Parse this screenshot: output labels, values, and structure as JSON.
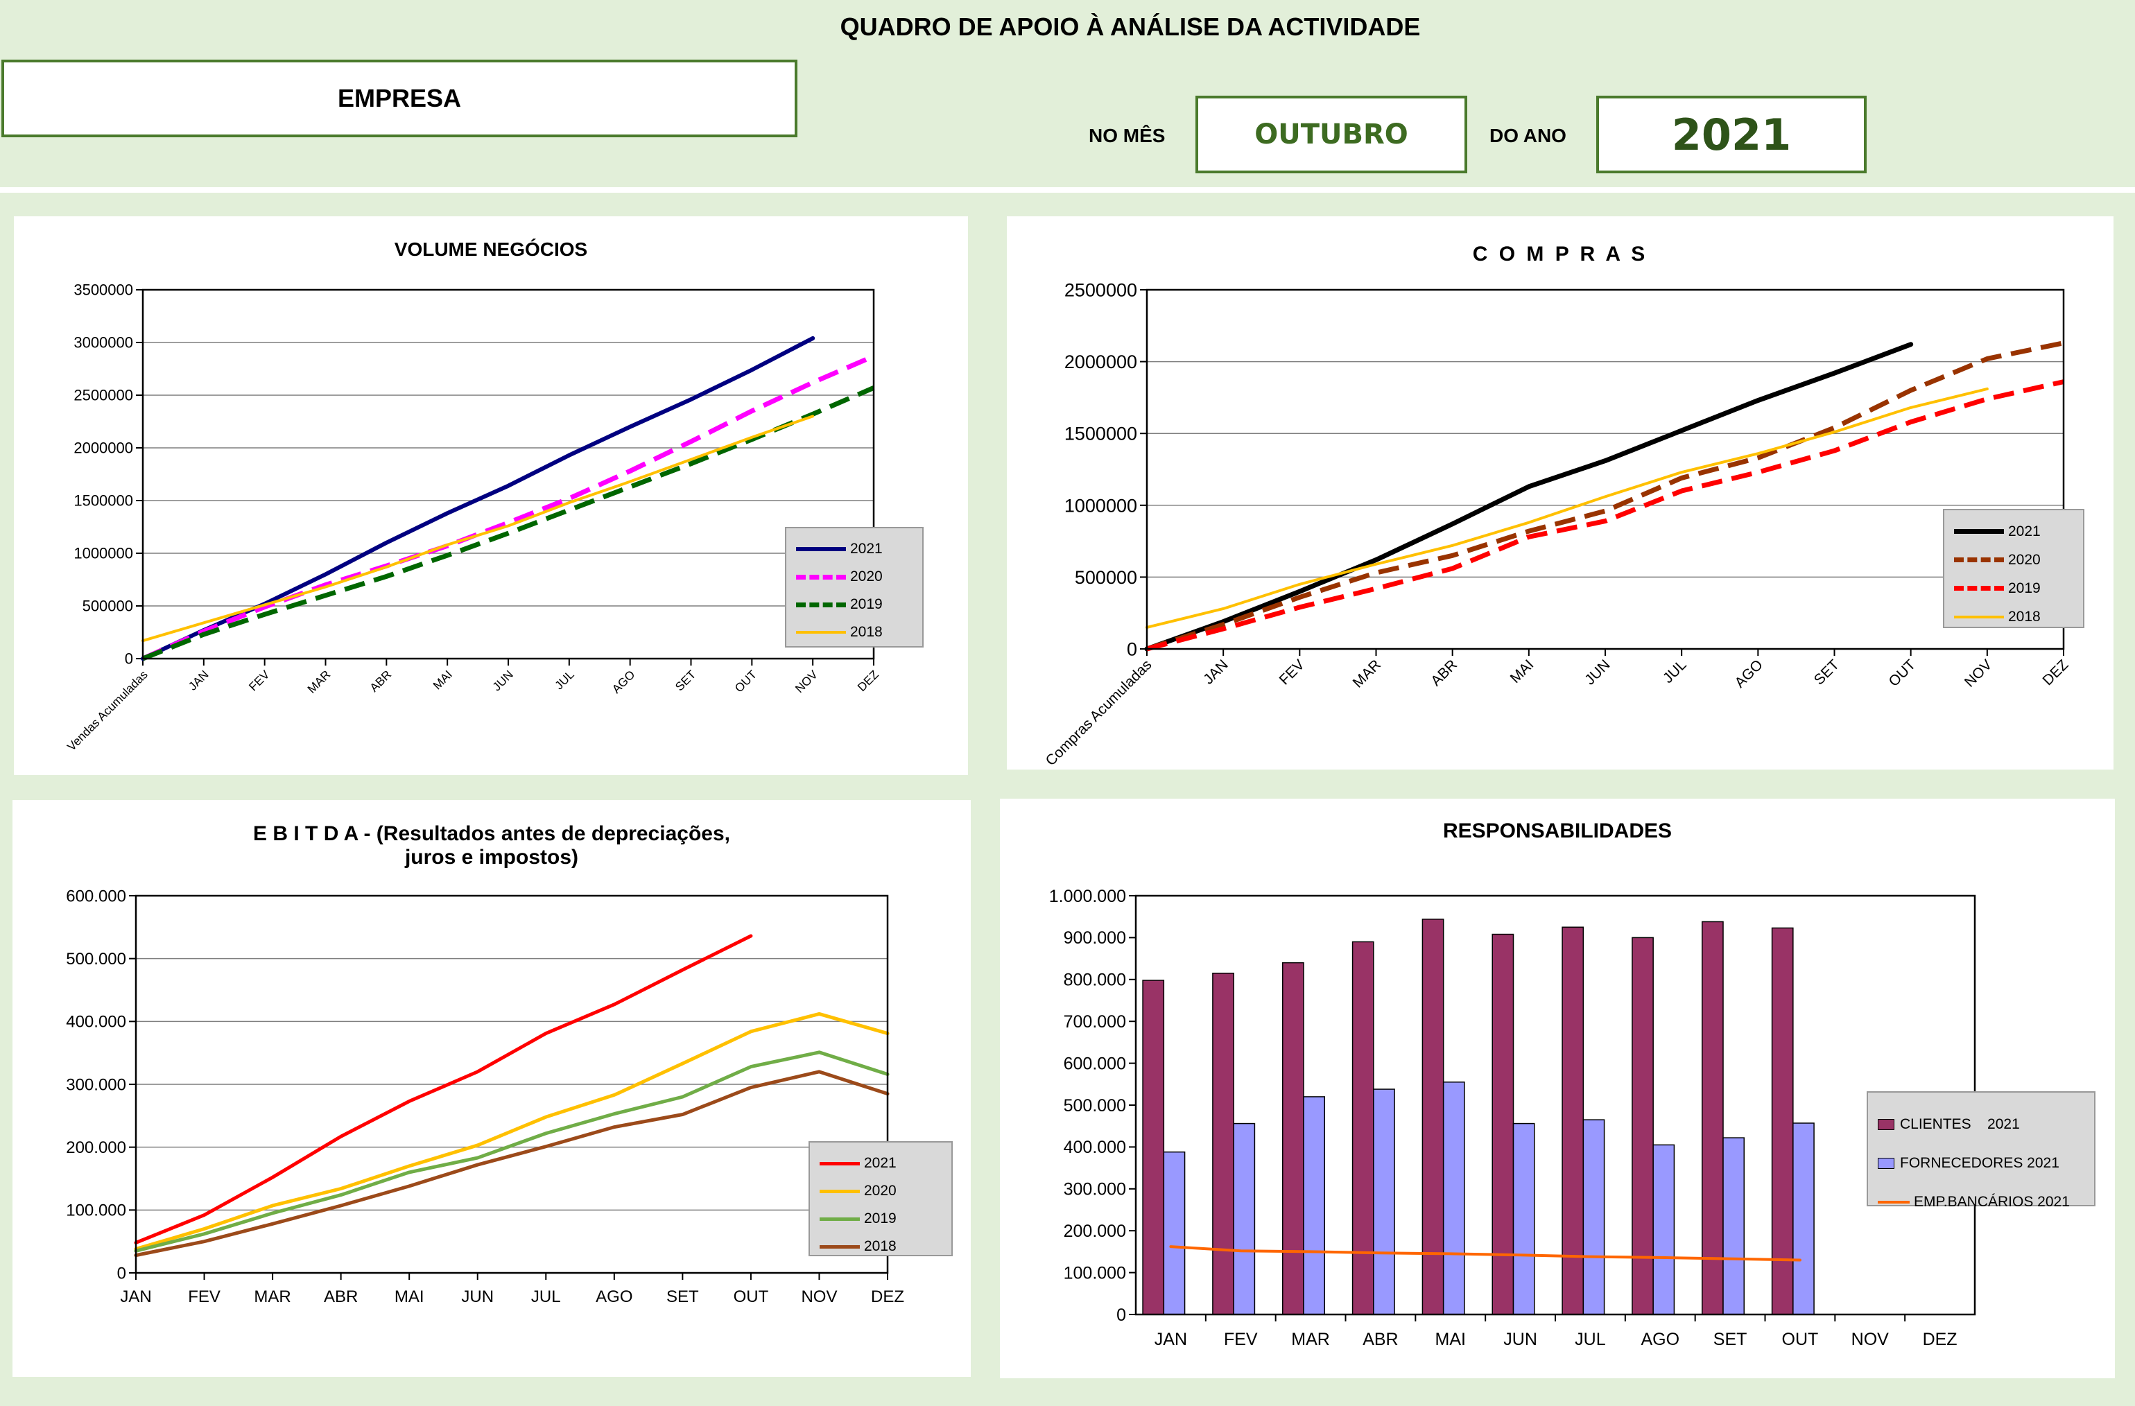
{
  "header": {
    "title": "QUADRO DE APOIO À ANÁLISE DA ACTIVIDADE",
    "company_label": "EMPRESA",
    "month_label": "NO MÊS",
    "month_value": "OUTUBRO",
    "year_label": "DO ANO",
    "year_value": "2021"
  },
  "colors": {
    "background": "#e2efd9",
    "box_border": "#4a7a2c",
    "month_text": "#3d6b21",
    "year_text": "#2e5319"
  },
  "chart_data": [
    {
      "id": "volume",
      "type": "line",
      "title": "VOLUME NEGÓCIOS",
      "categories": [
        "Vendas Acumuladas",
        "JAN",
        "FEV",
        "MAR",
        "ABR",
        "MAI",
        "JUN",
        "JUL",
        "AGO",
        "SET",
        "OUT",
        "NOV",
        "DEZ"
      ],
      "ylim": [
        0,
        3500000
      ],
      "yticks": [
        0,
        500000,
        1000000,
        1500000,
        2000000,
        2500000,
        3000000,
        3500000
      ],
      "ytick_labels": [
        "0",
        "500000",
        "1000000",
        "1500000",
        "2000000",
        "2500000",
        "3000000",
        "3500000"
      ],
      "grid": true,
      "legend": "right",
      "series": [
        {
          "name": "2021",
          "color": "#000080",
          "style": "solid",
          "width": 6,
          "values": [
            0,
            270000,
            520000,
            800000,
            1100000,
            1380000,
            1640000,
            1930000,
            2200000,
            2460000,
            2740000,
            3040000,
            null
          ]
        },
        {
          "name": "2020",
          "color": "#ff00ff",
          "style": "dash",
          "width": 7,
          "values": [
            0,
            260000,
            490000,
            700000,
            880000,
            1070000,
            1290000,
            1520000,
            1780000,
            2060000,
            2350000,
            2620000,
            2870000
          ]
        },
        {
          "name": "2019",
          "color": "#006600",
          "style": "dash",
          "width": 7,
          "values": [
            0,
            230000,
            420000,
            600000,
            780000,
            980000,
            1190000,
            1410000,
            1630000,
            1850000,
            2080000,
            2320000,
            2570000
          ]
        },
        {
          "name": "2018",
          "color": "#ffc000",
          "style": "solid",
          "width": 4,
          "values": [
            170000,
            340000,
            510000,
            680000,
            870000,
            1080000,
            1260000,
            1480000,
            1680000,
            1890000,
            2100000,
            2300000,
            null
          ]
        }
      ]
    },
    {
      "id": "compras",
      "type": "line",
      "title": "C O M P R A S",
      "categories": [
        "Compras Acumuladas",
        "JAN",
        "FEV",
        "MAR",
        "ABR",
        "MAI",
        "JUN",
        "JUL",
        "AGO",
        "SET",
        "OUT",
        "NOV",
        "DEZ"
      ],
      "ylim": [
        0,
        2500000
      ],
      "yticks": [
        0,
        500000,
        1000000,
        1500000,
        2000000,
        2500000
      ],
      "ytick_labels": [
        "0",
        "500000",
        "1000000",
        "1500000",
        "2000000",
        "2500000"
      ],
      "grid": true,
      "legend": "right",
      "series": [
        {
          "name": "2021",
          "color": "#000000",
          "style": "solid",
          "width": 7,
          "values": [
            0,
            190000,
            400000,
            620000,
            870000,
            1130000,
            1310000,
            1520000,
            1730000,
            1920000,
            2120000,
            null,
            null
          ]
        },
        {
          "name": "2020",
          "color": "#993300",
          "style": "dash",
          "width": 7,
          "values": [
            0,
            170000,
            360000,
            530000,
            650000,
            820000,
            960000,
            1190000,
            1330000,
            1540000,
            1800000,
            2020000,
            2130000
          ]
        },
        {
          "name": "2019",
          "color": "#ff0000",
          "style": "dash",
          "width": 7,
          "values": [
            0,
            140000,
            290000,
            420000,
            560000,
            780000,
            890000,
            1100000,
            1230000,
            1380000,
            1580000,
            1740000,
            1860000
          ]
        },
        {
          "name": "2018",
          "color": "#ffc000",
          "style": "solid",
          "width": 4,
          "values": [
            150000,
            280000,
            450000,
            590000,
            720000,
            880000,
            1060000,
            1230000,
            1360000,
            1510000,
            1680000,
            1810000,
            null
          ]
        }
      ]
    },
    {
      "id": "ebitda",
      "type": "line",
      "title": "E B I T D A  - (Resultados antes de depreciações,",
      "title2": "juros e impostos)",
      "categories": [
        "JAN",
        "FEV",
        "MAR",
        "ABR",
        "MAI",
        "JUN",
        "JUL",
        "AGO",
        "SET",
        "OUT",
        "NOV",
        "DEZ"
      ],
      "ylim": [
        0,
        600000
      ],
      "yticks": [
        0,
        100000,
        200000,
        300000,
        400000,
        500000,
        600000
      ],
      "ytick_labels": [
        "0",
        "100.000",
        "200.000",
        "300.000",
        "400.000",
        "500.000",
        "600.000"
      ],
      "grid": true,
      "legend": "right",
      "series": [
        {
          "name": "2021",
          "color": "#ff0000",
          "style": "solid",
          "width": 5,
          "values": [
            48000,
            92000,
            152000,
            217000,
            273000,
            320000,
            381000,
            427000,
            482000,
            536000,
            null,
            null
          ]
        },
        {
          "name": "2020",
          "color": "#ffc000",
          "style": "solid",
          "width": 5,
          "values": [
            38000,
            70000,
            107000,
            134000,
            170000,
            203000,
            248000,
            283000,
            333000,
            384000,
            412000,
            381000
          ]
        },
        {
          "name": "2019",
          "color": "#70ad47",
          "style": "solid",
          "width": 5,
          "values": [
            35000,
            62000,
            95000,
            124000,
            160000,
            183000,
            222000,
            253000,
            280000,
            328000,
            351000,
            316000
          ]
        },
        {
          "name": "2018",
          "color": "#9c4a1a",
          "style": "solid",
          "width": 5,
          "values": [
            28000,
            50000,
            78000,
            107000,
            138000,
            172000,
            201000,
            232000,
            252000,
            295000,
            320000,
            285000
          ]
        }
      ]
    },
    {
      "id": "responsabilidades",
      "type": "bar",
      "title": "RESPONSABILIDADES",
      "categories": [
        "JAN",
        "FEV",
        "MAR",
        "ABR",
        "MAI",
        "JUN",
        "JUL",
        "AGO",
        "SET",
        "OUT",
        "NOV",
        "DEZ"
      ],
      "ylim": [
        0,
        1000000
      ],
      "yticks": [
        0,
        100000,
        200000,
        300000,
        400000,
        500000,
        600000,
        700000,
        800000,
        900000,
        1000000
      ],
      "ytick_labels": [
        "0",
        "100.000",
        "200.000",
        "300.000",
        "400.000",
        "500.000",
        "600.000",
        "700.000",
        "800.000",
        "900.000",
        "1.000.000"
      ],
      "grid": false,
      "legend": "right",
      "series": [
        {
          "name": "CLIENTES    2021",
          "kind": "bar",
          "color": "#993366",
          "values": [
            798000,
            815000,
            840000,
            890000,
            944000,
            908000,
            925000,
            900000,
            938000,
            923000,
            null,
            null
          ]
        },
        {
          "name": "FORNECEDORES 2021",
          "kind": "bar",
          "color": "#9999ff",
          "values": [
            388000,
            456000,
            520000,
            538000,
            555000,
            456000,
            465000,
            405000,
            422000,
            457000,
            null,
            null
          ]
        },
        {
          "name": "EMP.BANCÁRIOS 2021",
          "kind": "line",
          "color": "#ff6600",
          "values": [
            162000,
            152000,
            150000,
            147000,
            145000,
            142000,
            138000,
            136000,
            133000,
            130000,
            null,
            null
          ]
        }
      ]
    }
  ]
}
